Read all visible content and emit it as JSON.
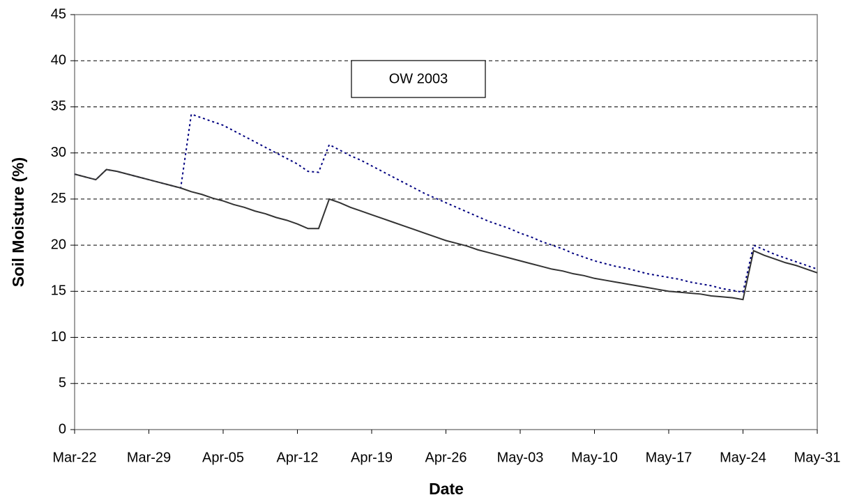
{
  "chart_data": {
    "type": "line",
    "annotation": "OW 2003",
    "xlabel": "Date",
    "ylabel": "Soil Moisture (%)",
    "categories": [
      "Mar-22",
      null,
      null,
      null,
      null,
      null,
      null,
      "Mar-29",
      null,
      null,
      null,
      null,
      null,
      null,
      "Apr-05",
      null,
      null,
      null,
      null,
      null,
      null,
      "Apr-12",
      null,
      null,
      null,
      null,
      null,
      null,
      "Apr-19",
      null,
      null,
      null,
      null,
      null,
      null,
      "Apr-26",
      null,
      null,
      null,
      null,
      null,
      null,
      "May-03",
      null,
      null,
      null,
      null,
      null,
      null,
      "May-10",
      null,
      null,
      null,
      null,
      null,
      null,
      "May-17",
      null,
      null,
      null,
      null,
      null,
      null,
      "May-24",
      null,
      null,
      null,
      null,
      null,
      null,
      "May-31"
    ],
    "series": [
      {
        "color": "#333333",
        "style": "solid",
        "values": [
          27.7,
          27.4,
          27.1,
          28.2,
          28.0,
          27.7,
          27.4,
          27.1,
          26.8,
          26.5,
          26.2,
          25.8,
          25.5,
          25.1,
          24.8,
          24.4,
          24.1,
          23.7,
          23.4,
          23.0,
          22.7,
          22.3,
          21.8,
          21.8,
          25.0,
          24.6,
          24.1,
          23.7,
          23.3,
          22.9,
          22.5,
          22.1,
          21.7,
          21.3,
          20.9,
          20.5,
          20.2,
          19.9,
          19.5,
          19.2,
          18.9,
          18.6,
          18.3,
          18.0,
          17.7,
          17.4,
          17.2,
          16.9,
          16.7,
          16.4,
          16.2,
          16.0,
          15.8,
          15.6,
          15.4,
          15.2,
          15.0,
          14.9,
          14.8,
          14.7,
          14.5,
          14.4,
          14.3,
          14.1,
          19.4,
          18.9,
          18.5,
          18.1,
          17.8,
          17.4,
          17.0
        ]
      },
      {
        "color": "#000080",
        "style": "dotted",
        "values": [
          27.7,
          27.4,
          27.1,
          28.2,
          28.0,
          27.7,
          27.4,
          27.1,
          26.8,
          26.5,
          26.2,
          34.2,
          33.8,
          33.4,
          33.0,
          32.4,
          31.8,
          31.2,
          30.6,
          30.0,
          29.4,
          28.8,
          28.0,
          27.9,
          30.9,
          30.3,
          29.7,
          29.2,
          28.6,
          28.0,
          27.4,
          26.8,
          26.2,
          25.6,
          25.1,
          24.6,
          24.1,
          23.6,
          23.1,
          22.6,
          22.2,
          21.8,
          21.3,
          20.9,
          20.4,
          20.0,
          19.6,
          19.1,
          18.7,
          18.3,
          18.0,
          17.7,
          17.5,
          17.2,
          16.9,
          16.7,
          16.5,
          16.3,
          16.0,
          15.8,
          15.6,
          15.3,
          15.1,
          14.9,
          20.0,
          19.5,
          19.0,
          18.6,
          18.2,
          17.8,
          17.4
        ]
      }
    ],
    "ylim": [
      0,
      45
    ],
    "yticks": [
      0,
      5,
      10,
      15,
      20,
      25,
      30,
      35,
      40,
      45
    ],
    "grid": true
  }
}
